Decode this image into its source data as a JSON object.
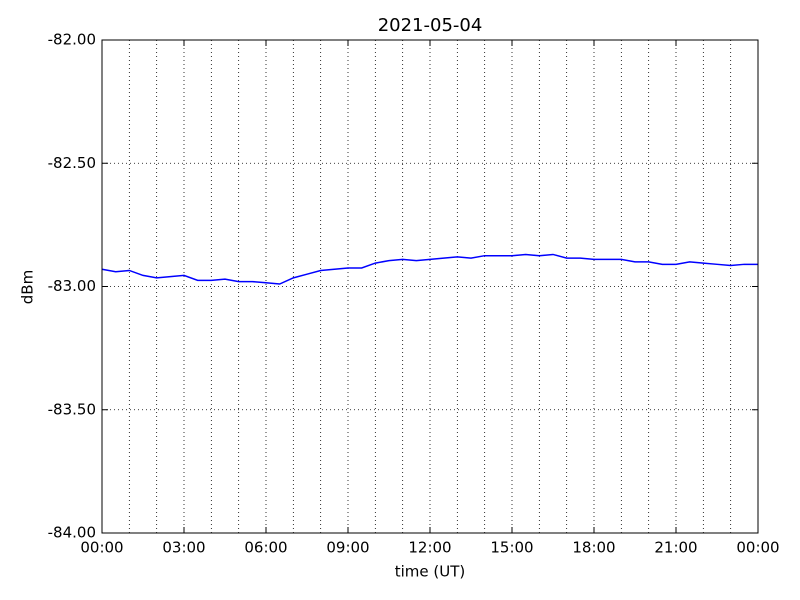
{
  "chart_data": {
    "type": "line",
    "title": "2021-05-04",
    "x_label": "time (UT)",
    "y_label": "dBm",
    "x": [
      0,
      0.5,
      1,
      1.5,
      2,
      2.5,
      3,
      3.5,
      4,
      4.5,
      5,
      5.5,
      6,
      6.5,
      7,
      7.5,
      8,
      8.5,
      9,
      9.5,
      10,
      10.5,
      11,
      11.5,
      12,
      12.5,
      13,
      13.5,
      14,
      14.5,
      15,
      15.5,
      16,
      16.5,
      17,
      17.5,
      18,
      18.5,
      19,
      19.5,
      20,
      20.5,
      21,
      21.5,
      22,
      22.5,
      23,
      23.5,
      24
    ],
    "series": [
      {
        "color": "#0000ff",
        "values": [
          -82.93,
          -82.94,
          -82.935,
          -82.955,
          -82.965,
          -82.96,
          -82.955,
          -82.975,
          -82.975,
          -82.97,
          -82.98,
          -82.98,
          -82.985,
          -82.99,
          -82.965,
          -82.95,
          -82.935,
          -82.93,
          -82.925,
          -82.925,
          -82.905,
          -82.895,
          -82.89,
          -82.895,
          -82.89,
          -82.885,
          -82.88,
          -82.885,
          -82.875,
          -82.875,
          -82.875,
          -82.87,
          -82.875,
          -82.87,
          -82.885,
          -82.885,
          -82.89,
          -82.89,
          -82.89,
          -82.9,
          -82.9,
          -82.91,
          -82.91,
          -82.9,
          -82.905,
          -82.91,
          -82.915,
          -82.91,
          -82.91
        ]
      }
    ],
    "xlim": [
      0,
      24
    ],
    "xticks": [
      {
        "value": 0,
        "label": "00:00"
      },
      {
        "value": 3,
        "label": "03:00"
      },
      {
        "value": 6,
        "label": "06:00"
      },
      {
        "value": 9,
        "label": "09:00"
      },
      {
        "value": 12,
        "label": "12:00"
      },
      {
        "value": 15,
        "label": "15:00"
      },
      {
        "value": 18,
        "label": "18:00"
      },
      {
        "value": 21,
        "label": "21:00"
      },
      {
        "value": 24,
        "label": "00:00"
      }
    ],
    "x_gridlines": [
      0,
      1,
      2,
      3,
      4,
      5,
      6,
      7,
      8,
      9,
      10,
      11,
      12,
      13,
      14,
      15,
      16,
      17,
      18,
      19,
      20,
      21,
      22,
      23,
      24
    ],
    "ylim": [
      -84,
      -82
    ],
    "yticks": [
      {
        "value": -84,
        "label": "-84.00"
      },
      {
        "value": -83.5,
        "label": "-83.50"
      },
      {
        "value": -83,
        "label": "-83.00"
      },
      {
        "value": -82.5,
        "label": "-82.50"
      },
      {
        "value": -82,
        "label": "-82.00"
      }
    ],
    "grid": true
  }
}
